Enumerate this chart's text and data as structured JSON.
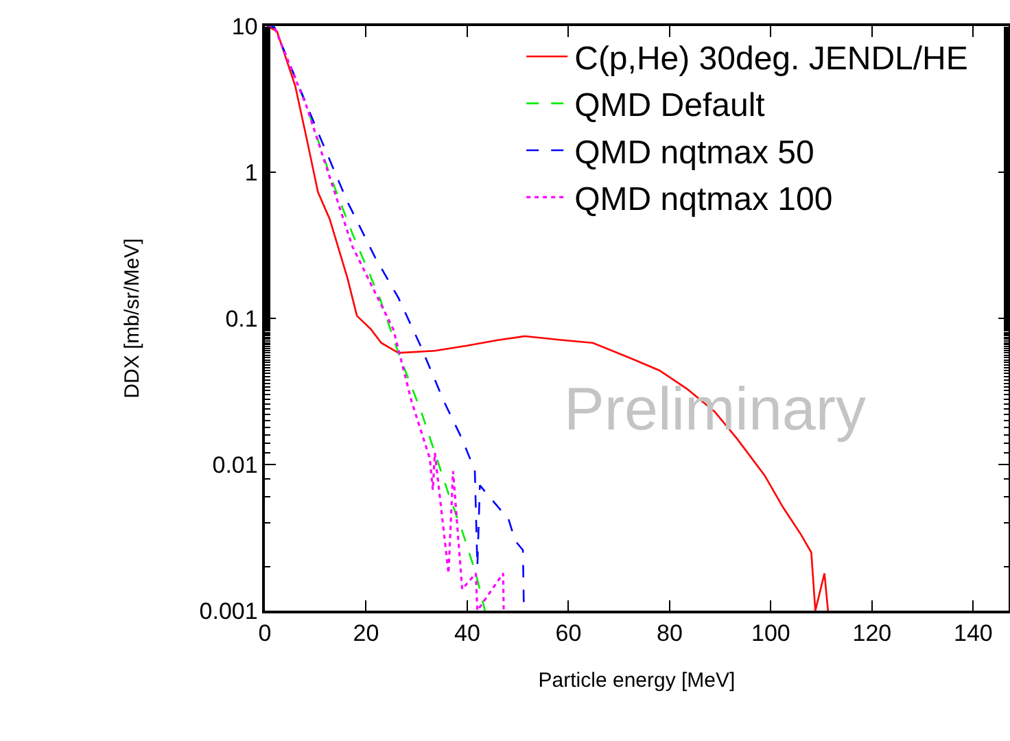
{
  "chart_data": {
    "type": "line",
    "xlabel": "Particle energy [MeV]",
    "ylabel": "DDX [mb/sr/MeV]",
    "log": "y",
    "grid": false,
    "legend": "top right",
    "marker": "none",
    "xlim": [
      0,
      147
    ],
    "xticks": [
      0,
      20,
      40,
      60,
      80,
      100,
      120,
      140
    ],
    "ylim": [
      0.001,
      10
    ],
    "yticks": [
      0.001,
      0.01,
      0.1,
      1,
      10
    ],
    "annotations": [
      "Preliminary"
    ],
    "series": [
      {
        "name": "C(p,He) 30deg. JENDL/HE",
        "color": "#ff0000",
        "line_style": "solid",
        "x": [
          0.5,
          2.4,
          6,
          8.2,
          10.5,
          12.8,
          16.3,
          18.2,
          21,
          23,
          26.4,
          33.6,
          40,
          46,
          51.4,
          58.9,
          64.8,
          72.5,
          78,
          83.4,
          88.9,
          93.4,
          98.8,
          102.4,
          106,
          108,
          108.8,
          110.6,
          111.3
        ],
        "values": [
          10,
          9.2,
          3.9,
          1.74,
          0.73,
          0.48,
          0.19,
          0.104,
          0.084,
          0.068,
          0.058,
          0.06,
          0.065,
          0.071,
          0.0755,
          0.071,
          0.068,
          0.053,
          0.044,
          0.033,
          0.023,
          0.0149,
          0.0084,
          0.0051,
          0.0033,
          0.0025,
          0.001,
          0.0018,
          0.001
        ]
      },
      {
        "name": "QMD Default",
        "color": "#00ee00",
        "line_style": "dashed",
        "x": [
          0.5,
          1.9,
          8.2,
          12.8,
          17.3,
          22.7,
          26.4,
          30.9,
          36.3,
          39,
          41.7,
          43.5
        ],
        "values": [
          10,
          9.8,
          2.85,
          0.97,
          0.38,
          0.138,
          0.058,
          0.023,
          0.0063,
          0.0035,
          0.0018,
          0.001
        ]
      },
      {
        "name": "QMD nqtmax 50",
        "color": "#0000ff",
        "line_style": "dashed",
        "x": [
          0.5,
          1.9,
          10.9,
          16.3,
          21.7,
          26.4,
          30.9,
          35.4,
          39,
          41.5,
          42,
          42.5,
          44.6,
          47,
          48,
          49.5,
          51,
          51.2
        ],
        "values": [
          10,
          9.8,
          1.74,
          0.63,
          0.265,
          0.138,
          0.0635,
          0.027,
          0.0149,
          0.0091,
          0.002,
          0.0072,
          0.0059,
          0.0047,
          0.0044,
          0.003,
          0.0026,
          0.001
        ]
      },
      {
        "name": "QMD nqtmax 100",
        "color": "#ff00ff",
        "line_style": "dotted",
        "x": [
          0.5,
          1.9,
          8.2,
          17.3,
          25.4,
          29,
          32.6,
          33.2,
          33.6,
          36.3,
          37.2,
          39,
          41.7,
          42,
          47.1,
          47.2
        ],
        "values": [
          10,
          9.8,
          2.85,
          0.31,
          0.084,
          0.027,
          0.011,
          0.0067,
          0.012,
          0.0018,
          0.009,
          0.0014,
          0.0018,
          0.001,
          0.0018,
          0.001
        ]
      }
    ]
  }
}
